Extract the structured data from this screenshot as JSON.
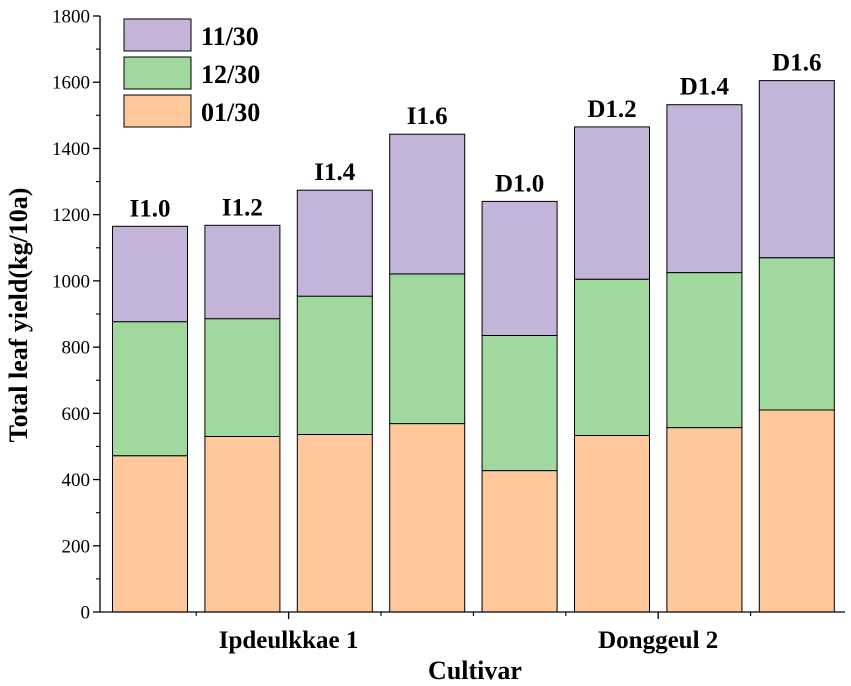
{
  "chart_data": {
    "type": "bar",
    "stacked": true,
    "categories": [
      "I1.0",
      "I1.2",
      "I1.4",
      "I1.6",
      "D1.0",
      "D1.2",
      "D1.4",
      "D1.6"
    ],
    "series": [
      {
        "name": "01/30",
        "color": "#FEC89A",
        "values": [
          472,
          530,
          536,
          569,
          427,
          533,
          557,
          610
        ]
      },
      {
        "name": "12/30",
        "color": "#A0D89E",
        "values": [
          405,
          356,
          418,
          452,
          408,
          472,
          468,
          460
        ]
      },
      {
        "name": "11/30",
        "color": "#C4B4DA",
        "values": [
          288,
          282,
          320,
          422,
          405,
          460,
          507,
          535
        ]
      }
    ],
    "groups": [
      {
        "label": "Ipdeulkkae 1",
        "categories": [
          "I1.0",
          "I1.2",
          "I1.4",
          "I1.6"
        ]
      },
      {
        "label": "Donggeul 2",
        "categories": [
          "D1.0",
          "D1.2",
          "D1.4",
          "D1.6"
        ]
      }
    ],
    "legend_order": [
      "11/30",
      "12/30",
      "01/30"
    ],
    "legend_position": "top-left",
    "xlabel": "Cultivar",
    "ylabel": "Total leaf yield(kg/10a)",
    "ylim": [
      0,
      1800
    ],
    "yticks": [
      0,
      200,
      400,
      600,
      800,
      1000,
      1200,
      1400,
      1600,
      1800
    ],
    "grid": false
  }
}
